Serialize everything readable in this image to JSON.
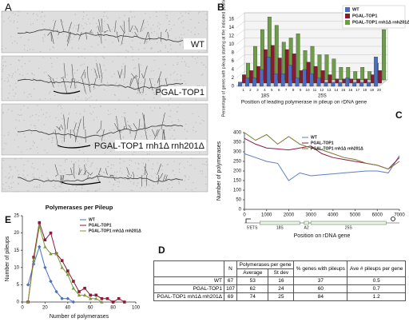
{
  "panel_a": {
    "panel": "A",
    "image_labels": [
      "WT",
      "PGAL-TOP1",
      "PGAL-TOP1 rnh1Δ rnh201Δ"
    ]
  },
  "chart_data": [
    {
      "type": "bar",
      "panel": "B",
      "ylabel": "Percentage of genes with pileups starting at the indicated position (%)",
      "xlabel": "Position of leading polymerase in pileup on rDNA gene",
      "annotations": [
        "18S",
        "25S"
      ],
      "categories": [
        "1",
        "2",
        "3",
        "4",
        "5",
        "6",
        "7",
        "8",
        "9",
        "10",
        "11",
        "12",
        "13",
        "14",
        "15",
        "16",
        "17",
        "18",
        "19",
        "20"
      ],
      "series": [
        {
          "name": "WT",
          "color": "#4a6fc2",
          "values": [
            1,
            2,
            2,
            4,
            7,
            3,
            3,
            5,
            2,
            4,
            3,
            2,
            1,
            1,
            1,
            2,
            1,
            1,
            1,
            7
          ]
        },
        {
          "name": "PGAL-TOP1",
          "color": "#8b1a2f",
          "values": [
            2,
            3,
            4,
            8,
            9,
            6,
            8,
            7,
            3,
            5,
            4,
            3,
            2,
            1,
            1,
            1,
            1,
            1,
            2,
            3
          ]
        },
        {
          "name": "PGAL-TOP1 rnh1Δ rnh201Δ",
          "color": "#6d9d46",
          "values": [
            4,
            8,
            12,
            15,
            13,
            9,
            10,
            11,
            7,
            8,
            6,
            6,
            5,
            3,
            3,
            2,
            3,
            2,
            4,
            12
          ]
        }
      ],
      "ylim": [
        0,
        16
      ],
      "yticks": [
        0,
        2,
        4,
        6,
        8,
        10,
        12,
        14,
        16
      ],
      "grid": true,
      "legend": "top-right"
    },
    {
      "type": "line",
      "panel": "C",
      "ylabel": "Number of polymerases",
      "xlabel": "Position on rDNA gene",
      "annotations": [
        "5'ETS",
        "18S",
        "A2",
        "25S"
      ],
      "x": [
        0,
        500,
        1000,
        1500,
        2000,
        2500,
        3000,
        3500,
        4000,
        4500,
        5000,
        5500,
        6000,
        6500,
        7000
      ],
      "series": [
        {
          "name": "WT",
          "color": "#5b7fc4",
          "values": [
            290,
            270,
            250,
            240,
            150,
            190,
            175,
            180,
            185,
            190,
            195,
            200,
            200,
            190,
            280
          ]
        },
        {
          "name": "PGAL-TOP1",
          "color": "#8b1a4a",
          "values": [
            370,
            340,
            320,
            315,
            310,
            320,
            330,
            290,
            270,
            260,
            250,
            240,
            230,
            210,
            270
          ]
        },
        {
          "name": "PGAL-TOP1 rnh1Δ rnh201Δ",
          "color": "#7a7a2a",
          "values": [
            400,
            360,
            390,
            340,
            380,
            340,
            320,
            310,
            290,
            270,
            260,
            240,
            230,
            210,
            250
          ]
        }
      ],
      "xlim": [
        0,
        7000
      ],
      "xticks": [
        0,
        1000,
        2000,
        3000,
        4000,
        5000,
        6000,
        7000
      ],
      "ylim": [
        0,
        400
      ],
      "yticks": [
        0,
        50,
        100,
        150,
        200,
        250,
        300,
        350,
        400
      ],
      "legend": "top-center"
    },
    {
      "type": "line",
      "panel": "E",
      "title": "Polymerases per Pileup",
      "ylabel": "Number of pileups",
      "xlabel": "Number of polymerases",
      "x": [
        5,
        10,
        15,
        20,
        25,
        30,
        35,
        40,
        45,
        50,
        55,
        60,
        65,
        70,
        75,
        80,
        85,
        90
      ],
      "series": [
        {
          "name": "WT",
          "color": "#4a6fc2",
          "marker": "diamond",
          "values": [
            5,
            11,
            16,
            10,
            6,
            3,
            1,
            1,
            0,
            null,
            null,
            null,
            null,
            null,
            null,
            null,
            null,
            null
          ]
        },
        {
          "name": "PGAL-TOP1",
          "color": "#8b1a3a",
          "marker": "square",
          "values": [
            0,
            13,
            23,
            18,
            20,
            14,
            12,
            9,
            6,
            3,
            4,
            2,
            2,
            1,
            1,
            0,
            1,
            0
          ]
        },
        {
          "name": "PGAL-TOP1 rnh1Δ rnh201Δ",
          "color": "#7a9a3a",
          "marker": "triangle",
          "values": [
            0,
            12,
            22,
            16,
            14,
            14,
            10,
            8,
            4,
            2,
            2,
            1,
            1,
            0,
            null,
            null,
            null,
            null
          ]
        }
      ],
      "xlim": [
        0,
        100
      ],
      "xticks": [
        0,
        20,
        40,
        60,
        80,
        100
      ],
      "ylim": [
        0,
        25
      ],
      "yticks": [
        0,
        5,
        10,
        15,
        20,
        25
      ],
      "legend": "top-right"
    }
  ],
  "table": {
    "panel": "D",
    "header": [
      "N",
      "Polymerases per gene",
      "% genes with pileups",
      "Ave # pileups per gene"
    ],
    "subheader": [
      "Average",
      "St dev"
    ],
    "rows": [
      [
        "WT",
        67,
        53,
        16,
        37,
        0.5
      ],
      [
        "PGAL-TOP1",
        107,
        62,
        24,
        60,
        0.7
      ],
      [
        "PGAL-TOP1 rnh1Δ rnh201Δ",
        69,
        74,
        25,
        84,
        1.2
      ]
    ]
  }
}
